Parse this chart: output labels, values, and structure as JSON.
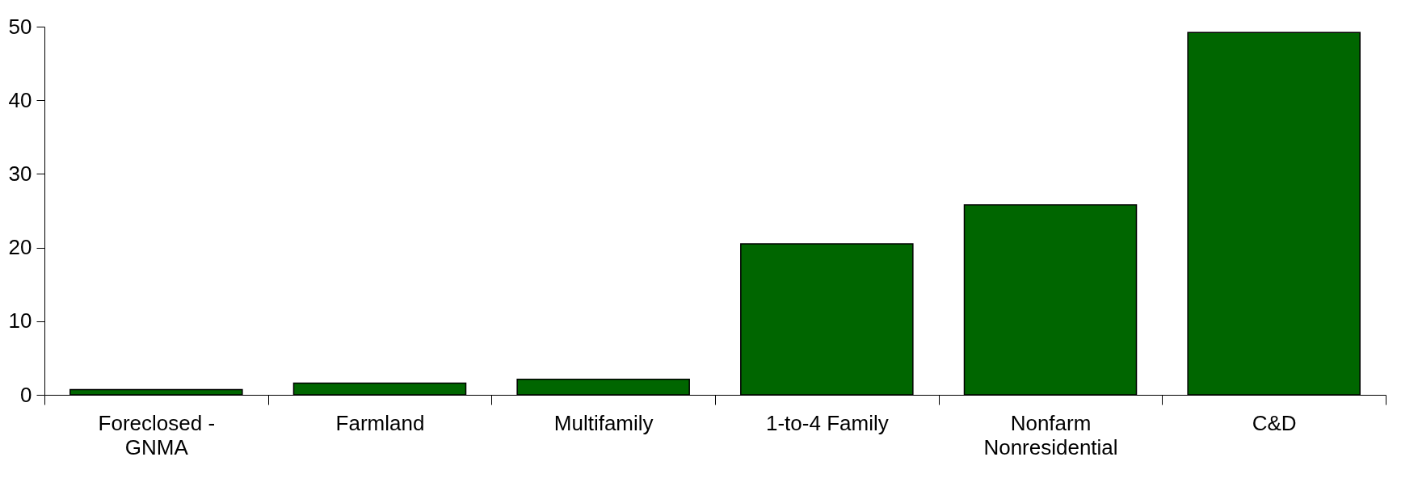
{
  "chart_data": {
    "type": "bar",
    "categories": [
      "Foreclosed - GNMA",
      "Farmland",
      "Multifamily",
      "1-to-4 Family",
      "Nonfarm Nonresidential",
      "C&D"
    ],
    "values": [
      0.7,
      1.6,
      2.1,
      20.5,
      25.8,
      49.2
    ],
    "color": "#006600",
    "ylim": [
      0,
      50
    ],
    "yticks": [
      0,
      10,
      20,
      30,
      40,
      50
    ],
    "grid": false
  }
}
